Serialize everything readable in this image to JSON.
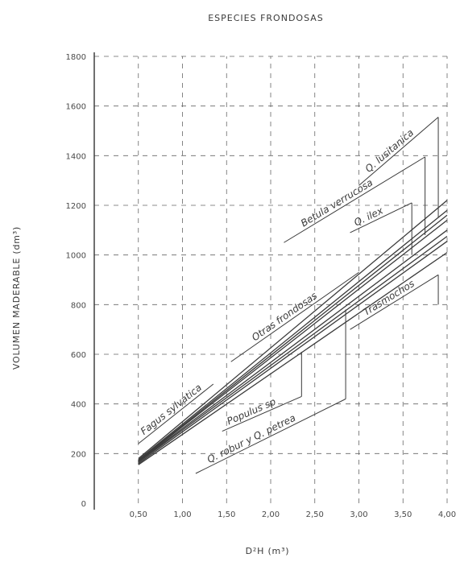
{
  "chart_data": {
    "type": "line",
    "title": "ESPECIES FRONDOSAS",
    "xlabel": "D²H  (m³)",
    "ylabel": "VOLUMEN MADERABLE  (dm³)",
    "xlim": [
      0,
      4.0
    ],
    "ylim": [
      0,
      1800
    ],
    "x_ticks": [
      "0,50",
      "1,00",
      "1,50",
      "2,00",
      "2,50",
      "3,00",
      "3,50",
      "4,00"
    ],
    "x_tick_values": [
      0.5,
      1.0,
      1.5,
      2.0,
      2.5,
      3.0,
      3.5,
      4.0
    ],
    "y_ticks": [
      "0",
      "200",
      "400",
      "600",
      "800",
      "1000",
      "1200",
      "1400",
      "1600",
      "1800"
    ],
    "y_tick_values": [
      0,
      200,
      400,
      600,
      800,
      1000,
      1200,
      1400,
      1600,
      1800
    ],
    "grid": true,
    "series": [
      {
        "name": "Q. lusitanica",
        "x": [
          0.5,
          4.0
        ],
        "y": [
          175,
          1180
        ]
      },
      {
        "name": "Betula verrucosa",
        "x": [
          0.5,
          4.0
        ],
        "y": [
          172,
          1160
        ]
      },
      {
        "name": "Q. ilex",
        "x": [
          0.5,
          4.0
        ],
        "y": [
          170,
          1140
        ]
      },
      {
        "name": "Fagus sylvatica",
        "x": [
          0.5,
          4.0
        ],
        "y": [
          180,
          1220
        ]
      },
      {
        "name": "Otras frondosas",
        "x": [
          0.5,
          4.0
        ],
        "y": [
          168,
          1100
        ]
      },
      {
        "name": "Populus sp",
        "x": [
          0.5,
          4.0
        ],
        "y": [
          165,
          1075
        ]
      },
      {
        "name": "Q. robur y Q. petrea",
        "x": [
          0.5,
          4.0
        ],
        "y": [
          160,
          1055
        ]
      },
      {
        "name": "Trasmochos",
        "x": [
          0.5,
          4.0
        ],
        "y": [
          155,
          1010
        ]
      }
    ]
  }
}
